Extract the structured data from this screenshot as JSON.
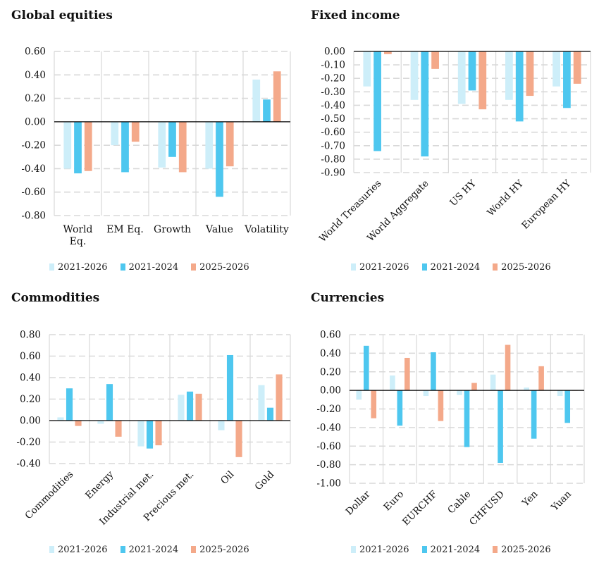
{
  "legend": [
    "2021-2026",
    "2021-2024",
    "2025-2026"
  ],
  "colors": {
    "2021-2026": "#cdeef9",
    "2021-2024": "#4ec7ef",
    "2025-2026": "#f4a98a",
    "grid": "#d9d9d9",
    "axis": "#000000"
  },
  "chart_data": [
    {
      "type": "bar",
      "title": "Global equities",
      "categories": [
        "World Eq.",
        "EM Eq.",
        "Growth",
        "Value",
        "Volatility"
      ],
      "series": [
        {
          "name": "2021-2026",
          "values": [
            -0.4,
            -0.2,
            -0.39,
            -0.4,
            0.36
          ]
        },
        {
          "name": "2021-2024",
          "values": [
            -0.44,
            -0.43,
            -0.3,
            -0.64,
            0.19
          ]
        },
        {
          "name": "2025-2026",
          "values": [
            -0.42,
            -0.17,
            -0.43,
            -0.38,
            0.43
          ]
        }
      ],
      "ylim": [
        -0.8,
        0.6
      ],
      "yticks": [
        "0.60",
        "0.40",
        "0.20",
        "0.00",
        "-0.20",
        "-0.40",
        "-0.60",
        "-0.80"
      ],
      "grid": true,
      "legend_position": "bottom",
      "xlabel_rotation": 0
    },
    {
      "type": "bar",
      "title": "Fixed income",
      "categories": [
        "World Treasuries",
        "World Aggregate",
        "US HY",
        "World HY",
        "European HY"
      ],
      "series": [
        {
          "name": "2021-2026",
          "values": [
            -0.26,
            -0.36,
            -0.39,
            -0.36,
            -0.26
          ]
        },
        {
          "name": "2021-2024",
          "values": [
            -0.74,
            -0.78,
            -0.29,
            -0.52,
            -0.42
          ]
        },
        {
          "name": "2025-2026",
          "values": [
            -0.02,
            -0.13,
            -0.43,
            -0.33,
            -0.24
          ]
        }
      ],
      "ylim": [
        -0.9,
        0.0
      ],
      "yticks": [
        "0.00",
        "-0.10",
        "-0.20",
        "-0.30",
        "-0.40",
        "-0.50",
        "-0.60",
        "-0.70",
        "-0.80",
        "-0.90"
      ],
      "grid": true,
      "legend_position": "bottom",
      "xlabel_rotation": -45
    },
    {
      "type": "bar",
      "title": "Commodities",
      "categories": [
        "Commodities",
        "Energy",
        "Industrial met.",
        "Precious met.",
        "Oil",
        "Gold"
      ],
      "series": [
        {
          "name": "2021-2026",
          "values": [
            0.03,
            -0.03,
            -0.24,
            0.24,
            -0.09,
            0.33
          ]
        },
        {
          "name": "2021-2024",
          "values": [
            0.3,
            0.34,
            -0.26,
            0.27,
            0.61,
            0.12
          ]
        },
        {
          "name": "2025-2026",
          "values": [
            -0.05,
            -0.15,
            -0.23,
            0.25,
            -0.34,
            0.43
          ]
        }
      ],
      "ylim": [
        -0.4,
        0.8
      ],
      "yticks": [
        "0.80",
        "0.60",
        "0.40",
        "0.20",
        "0.00",
        "-0.20",
        "-0.40"
      ],
      "grid": true,
      "legend_position": "bottom",
      "xlabel_rotation": -45
    },
    {
      "type": "bar",
      "title": "Currencies",
      "categories": [
        "Dollar",
        "Euro",
        "EURCHF",
        "Cable",
        "CHFUSD",
        "Yen",
        "Yuan"
      ],
      "series": [
        {
          "name": "2021-2026",
          "values": [
            -0.1,
            0.16,
            -0.06,
            -0.05,
            0.17,
            0.03,
            -0.06
          ]
        },
        {
          "name": "2021-2024",
          "values": [
            0.48,
            -0.38,
            0.41,
            -0.61,
            -0.78,
            -0.52,
            -0.35
          ]
        },
        {
          "name": "2025-2026",
          "values": [
            -0.3,
            0.35,
            -0.33,
            0.08,
            0.49,
            0.26,
            0.0
          ]
        }
      ],
      "ylim": [
        -1.0,
        0.6
      ],
      "yticks": [
        "0.60",
        "0.40",
        "0.20",
        "0.00",
        "-0.20",
        "-0.40",
        "-0.60",
        "-0.80",
        "-1.00"
      ],
      "grid": true,
      "legend_position": "bottom",
      "xlabel_rotation": -45
    }
  ]
}
